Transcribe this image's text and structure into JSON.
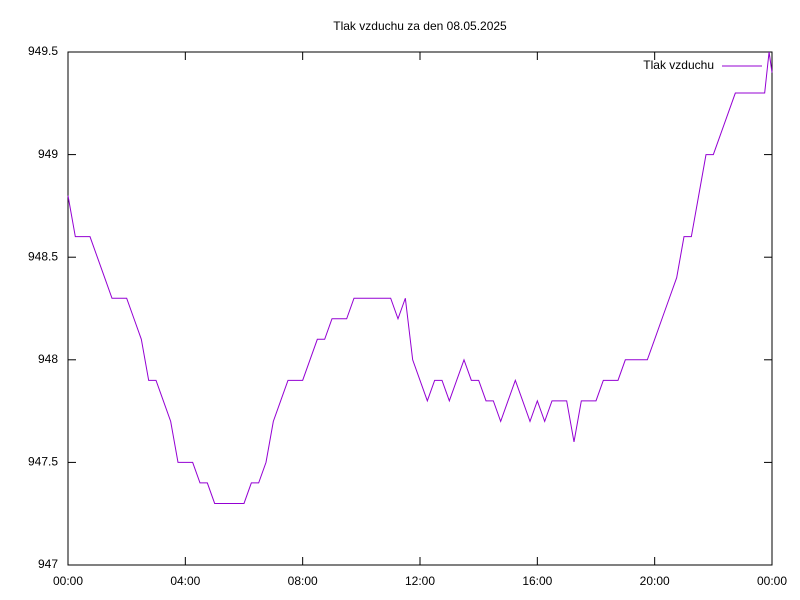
{
  "chart_data": {
    "type": "line",
    "title": "Tlak vzduchu za den 08.05.2025",
    "x": [
      0,
      0.25,
      0.5,
      0.75,
      1,
      1.25,
      1.5,
      1.75,
      2,
      2.25,
      2.5,
      2.75,
      3,
      3.25,
      3.5,
      3.75,
      4,
      4.25,
      4.5,
      4.75,
      5,
      5.25,
      5.5,
      5.75,
      6,
      6.25,
      6.5,
      6.75,
      7,
      7.25,
      7.5,
      7.75,
      8,
      8.25,
      8.5,
      8.75,
      9,
      9.25,
      9.5,
      9.75,
      10,
      10.25,
      10.5,
      10.75,
      11,
      11.25,
      11.5,
      11.75,
      12,
      12.25,
      12.5,
      12.75,
      13,
      13.25,
      13.5,
      13.75,
      14,
      14.25,
      14.5,
      14.75,
      15,
      15.25,
      15.5,
      15.75,
      16,
      16.25,
      16.5,
      16.75,
      17,
      17.25,
      17.5,
      17.75,
      18,
      18.25,
      18.5,
      18.75,
      19,
      19.25,
      19.5,
      19.75,
      20,
      20.25,
      20.5,
      20.75,
      21,
      21.25,
      21.5,
      21.75,
      22,
      22.25,
      22.5,
      22.75,
      23,
      23.25,
      23.5,
      23.75,
      23.9,
      24
    ],
    "series": [
      {
        "name": "Tlak vzduchu",
        "color": "#9400d3",
        "values": [
          948.8,
          948.6,
          948.6,
          948.6,
          948.5,
          948.4,
          948.3,
          948.3,
          948.3,
          948.2,
          948.1,
          947.9,
          947.9,
          947.8,
          947.7,
          947.5,
          947.5,
          947.5,
          947.4,
          947.4,
          947.3,
          947.3,
          947.3,
          947.3,
          947.3,
          947.4,
          947.4,
          947.5,
          947.7,
          947.8,
          947.9,
          947.9,
          947.9,
          948.0,
          948.1,
          948.1,
          948.2,
          948.2,
          948.2,
          948.3,
          948.3,
          948.3,
          948.3,
          948.3,
          948.3,
          948.2,
          948.3,
          948.0,
          947.9,
          947.8,
          947.9,
          947.9,
          947.8,
          947.9,
          948.0,
          947.9,
          947.9,
          947.8,
          947.8,
          947.7,
          947.8,
          947.9,
          947.8,
          947.7,
          947.8,
          947.7,
          947.8,
          947.8,
          947.8,
          947.6,
          947.8,
          947.8,
          947.8,
          947.9,
          947.9,
          947.9,
          948.0,
          948.0,
          948.0,
          948.0,
          948.1,
          948.2,
          948.3,
          948.4,
          948.6,
          948.6,
          948.8,
          949.0,
          949.0,
          949.1,
          949.2,
          949.3,
          949.3,
          949.3,
          949.3,
          949.3,
          949.5,
          949.4
        ]
      }
    ],
    "xlim": [
      0,
      24
    ],
    "xticks": [
      {
        "value": 0,
        "label": "00:00"
      },
      {
        "value": 4,
        "label": "04:00"
      },
      {
        "value": 8,
        "label": "08:00"
      },
      {
        "value": 12,
        "label": "12:00"
      },
      {
        "value": 16,
        "label": "16:00"
      },
      {
        "value": 20,
        "label": "20:00"
      },
      {
        "value": 24,
        "label": "00:00"
      }
    ],
    "ylim": [
      947,
      949.5
    ],
    "yticks": [
      947,
      947.5,
      948,
      948.5,
      949,
      949.5
    ],
    "grid": false,
    "legend": "top-right"
  }
}
